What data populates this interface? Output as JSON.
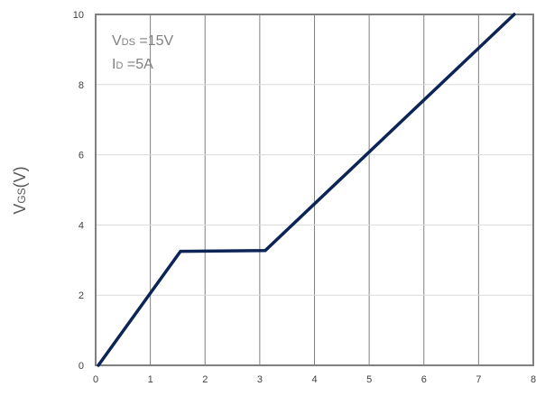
{
  "chart_data": {
    "type": "line",
    "title": "",
    "xlabel": "",
    "ylabel": {
      "main": "V",
      "sub": "GS",
      "unit": "(V)"
    },
    "xlim": [
      0,
      8
    ],
    "ylim": [
      0,
      10
    ],
    "x_ticks": [
      0,
      1,
      2,
      3,
      4,
      5,
      6,
      7,
      8
    ],
    "y_ticks": [
      0,
      2,
      4,
      6,
      8,
      10
    ],
    "grid": {
      "vertical": true,
      "horizontal": true
    },
    "series": [
      {
        "color": "#0d2457",
        "x": [
          0.05,
          1.55,
          3.1,
          7.65
        ],
        "y": [
          0.0,
          3.25,
          3.27,
          10.0
        ]
      }
    ],
    "annotations": [
      {
        "main": "V",
        "sub": "DS",
        "value": " =15V"
      },
      {
        "main": "I",
        "sub": "D",
        "value": " =5A"
      }
    ]
  }
}
